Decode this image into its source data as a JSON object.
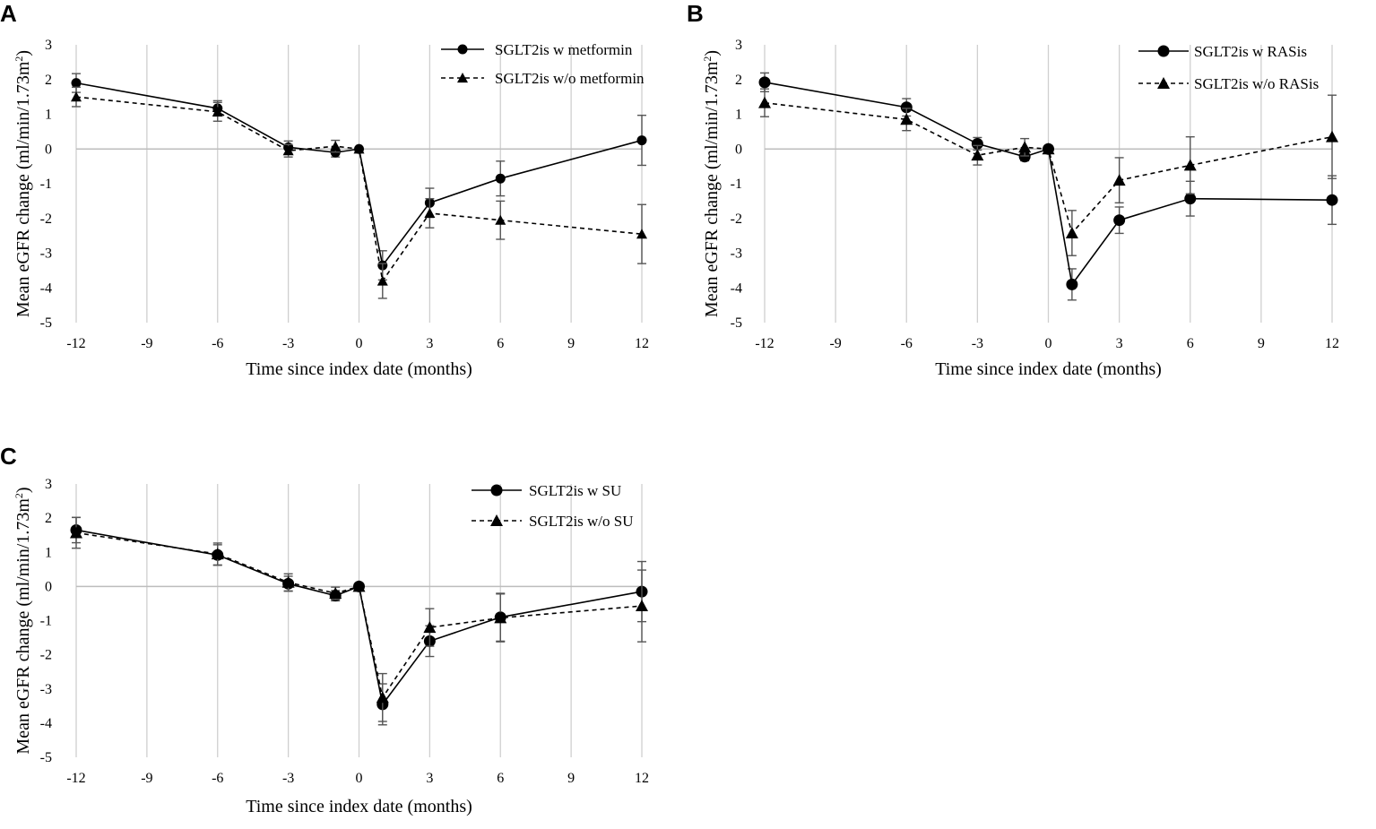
{
  "figure": {
    "ylabel_main": "Mean eGFR change (ml/min/1.73m",
    "ylabel_sup": "2",
    "ylabel_close": ")",
    "xlabel": "Time since index date (months)"
  },
  "chart_data": [
    {
      "panel": "A",
      "type": "line",
      "x": [
        -12,
        -6,
        -3,
        -1,
        0,
        1,
        3,
        6,
        12
      ],
      "xticks": [
        -12,
        -9,
        -6,
        -3,
        0,
        3,
        6,
        9,
        12
      ],
      "yticks": [
        3,
        2,
        1,
        0,
        -1,
        -2,
        -3,
        -4,
        -5
      ],
      "xlim": [
        -12,
        12
      ],
      "ylim": [
        -5,
        3
      ],
      "series": [
        {
          "name": "SGLT2is w metformin",
          "marker": "circle",
          "line": "solid",
          "values": [
            1.9,
            1.17,
            0.05,
            -0.1,
            0.0,
            -3.35,
            -1.55,
            -0.85,
            0.25
          ],
          "err": [
            0.27,
            0.22,
            0.18,
            0.13,
            0.0,
            0.42,
            0.42,
            0.5,
            0.72
          ]
        },
        {
          "name": "SGLT2is w/o metformin",
          "marker": "triangle",
          "line": "dashed",
          "values": [
            1.5,
            1.07,
            -0.05,
            0.08,
            0.0,
            -3.8,
            -1.85,
            -2.05,
            -2.45
          ],
          "err": [
            0.28,
            0.27,
            0.18,
            0.17,
            0.0,
            0.5,
            0.42,
            0.55,
            0.85
          ]
        }
      ]
    },
    {
      "panel": "B",
      "type": "line",
      "x": [
        -12,
        -6,
        -3,
        -1,
        0,
        1,
        3,
        6,
        12
      ],
      "xticks": [
        -12,
        -9,
        -6,
        -3,
        0,
        3,
        6,
        9,
        12
      ],
      "yticks": [
        3,
        2,
        1,
        0,
        -1,
        -2,
        -3,
        -4,
        -5
      ],
      "xlim": [
        -12,
        12
      ],
      "ylim": [
        -5,
        3
      ],
      "series": [
        {
          "name": "SGLT2is w RASis",
          "marker": "circle",
          "line": "solid",
          "values": [
            1.92,
            1.2,
            0.15,
            -0.22,
            0.0,
            -3.9,
            -2.05,
            -1.43,
            -1.47
          ],
          "err": [
            0.27,
            0.25,
            0.18,
            0.12,
            0.0,
            0.45,
            0.38,
            0.5,
            0.7
          ]
        },
        {
          "name": "SGLT2is w/o RASis",
          "marker": "triangle",
          "line": "dashed",
          "values": [
            1.33,
            0.85,
            -0.18,
            0.05,
            0.0,
            -2.42,
            -0.9,
            -0.47,
            0.35
          ],
          "err": [
            0.4,
            0.32,
            0.28,
            0.25,
            0.0,
            0.65,
            0.65,
            0.82,
            1.2
          ]
        }
      ]
    },
    {
      "panel": "C",
      "type": "line",
      "x": [
        -12,
        -6,
        -3,
        -1,
        0,
        1,
        3,
        6,
        12
      ],
      "xticks": [
        -12,
        -9,
        -6,
        -3,
        0,
        3,
        6,
        9,
        12
      ],
      "yticks": [
        3,
        2,
        1,
        0,
        -1,
        -2,
        -3,
        -4,
        -5
      ],
      "xlim": [
        -12,
        12
      ],
      "ylim": [
        -5,
        3
      ],
      "series": [
        {
          "name": "SGLT2is w SU",
          "marker": "circle",
          "line": "solid",
          "values": [
            1.65,
            0.92,
            0.08,
            -0.27,
            0.0,
            -3.45,
            -1.6,
            -0.9,
            -0.15
          ],
          "err": [
            0.37,
            0.3,
            0.22,
            0.15,
            0.0,
            0.6,
            0.45,
            0.7,
            0.88
          ]
        },
        {
          "name": "SGLT2is w/o SU",
          "marker": "triangle",
          "line": "dashed",
          "values": [
            1.57,
            0.95,
            0.12,
            -0.2,
            0.0,
            -3.25,
            -1.2,
            -0.92,
            -0.57
          ],
          "err": [
            0.45,
            0.32,
            0.25,
            0.18,
            0.0,
            0.7,
            0.55,
            0.7,
            1.05
          ]
        }
      ]
    }
  ]
}
